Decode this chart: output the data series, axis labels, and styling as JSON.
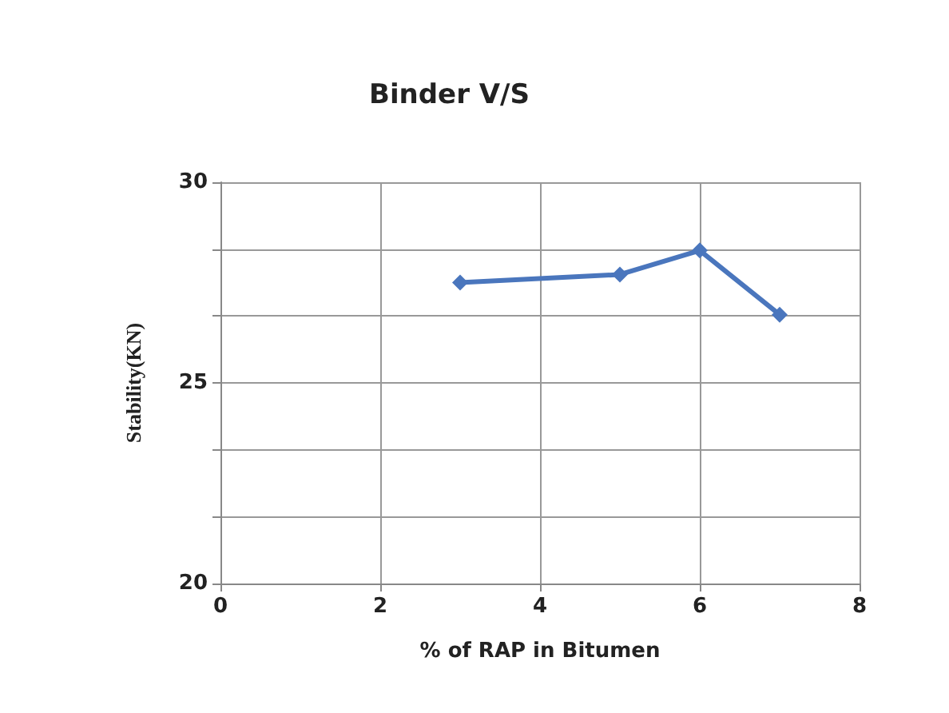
{
  "chart_data": {
    "type": "line",
    "title": "Binder V/S",
    "xlabel": "% of RAP in Bitumen",
    "ylabel": "Stability(KN)",
    "x": [
      3,
      5,
      6,
      7
    ],
    "series": [
      {
        "color": "#4a76bd",
        "values": [
          27.5,
          27.7,
          28.3,
          26.7
        ]
      }
    ],
    "xlim": [
      0,
      8
    ],
    "xticks": [
      0,
      2,
      4,
      6,
      8
    ],
    "ylim": [
      20,
      30
    ],
    "yticks": [
      20,
      {
        "value": 21.67,
        "label": null
      },
      {
        "value": 23.33,
        "label": null
      },
      25,
      {
        "value": 26.67,
        "label": null
      },
      {
        "value": 28.33,
        "label": null
      },
      30
    ],
    "grid": true,
    "marker": "diamond",
    "line_style": "solid"
  }
}
